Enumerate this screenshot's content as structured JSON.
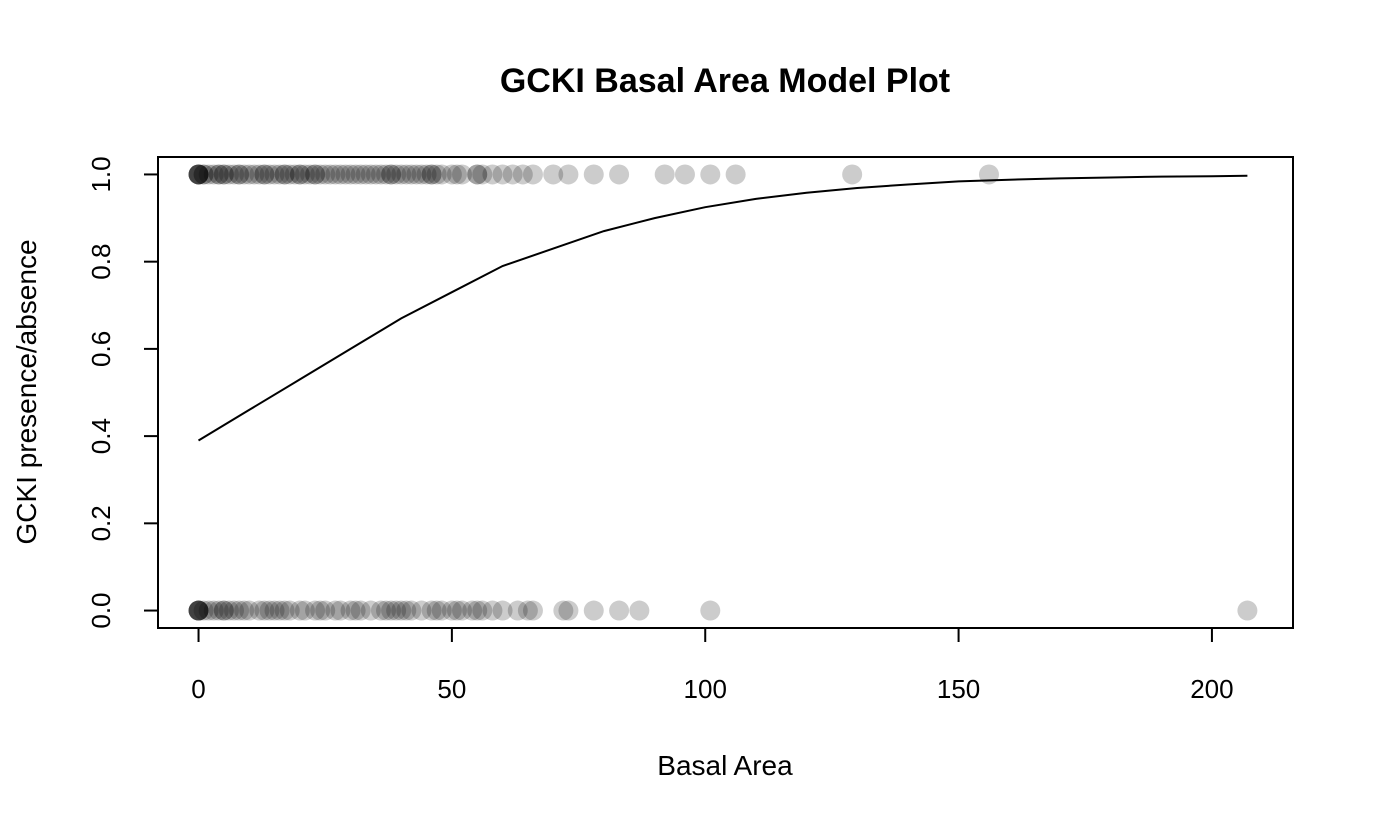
{
  "chart_data": {
    "type": "scatter",
    "title": "GCKI Basal Area Model Plot",
    "xlabel": "Basal Area",
    "ylabel": "GCKI presence/absence",
    "xlim": [
      -8,
      216
    ],
    "ylim": [
      -0.04,
      1.04
    ],
    "x_ticks": [
      0,
      50,
      100,
      150,
      200
    ],
    "y_ticks": [
      0.0,
      0.2,
      0.4,
      0.6,
      0.8,
      1.0
    ],
    "x_tick_labels": [
      "0",
      "50",
      "100",
      "150",
      "200"
    ],
    "y_tick_labels": [
      "0.0",
      "0.2",
      "0.4",
      "0.6",
      "0.8",
      "1.0"
    ],
    "grid": false,
    "legend": "none",
    "point_color": "#000000",
    "point_alpha": 0.2,
    "line_color": "#000000",
    "series": [
      {
        "kind": "points",
        "x": [
          0,
          0,
          0,
          0,
          0,
          0,
          1,
          1,
          2,
          3,
          4,
          4,
          5,
          5,
          6,
          7,
          8,
          8,
          9,
          10,
          11,
          12,
          13,
          13,
          14,
          15,
          16,
          17,
          17,
          18,
          19,
          20,
          20,
          21,
          22,
          23,
          23,
          24,
          25,
          26,
          27,
          28,
          29,
          30,
          31,
          32,
          33,
          34,
          35,
          36,
          37,
          38,
          38,
          39,
          40,
          41,
          42,
          43,
          44,
          45,
          46,
          46,
          47,
          48,
          50,
          51,
          52,
          55,
          55,
          56,
          58,
          60,
          62,
          64,
          66,
          70,
          73,
          78,
          83,
          92,
          96,
          101,
          106,
          129,
          156
        ],
        "y": [
          1,
          1,
          1,
          1,
          1,
          1,
          1,
          1,
          1,
          1,
          1,
          1,
          1,
          1,
          1,
          1,
          1,
          1,
          1,
          1,
          1,
          1,
          1,
          1,
          1,
          1,
          1,
          1,
          1,
          1,
          1,
          1,
          1,
          1,
          1,
          1,
          1,
          1,
          1,
          1,
          1,
          1,
          1,
          1,
          1,
          1,
          1,
          1,
          1,
          1,
          1,
          1,
          1,
          1,
          1,
          1,
          1,
          1,
          1,
          1,
          1,
          1,
          1,
          1,
          1,
          1,
          1,
          1,
          1,
          1,
          1,
          1,
          1,
          1,
          1,
          1,
          1,
          1,
          1,
          1,
          1,
          1,
          1,
          1,
          1
        ]
      },
      {
        "kind": "points",
        "x": [
          0,
          0,
          0,
          0,
          0,
          0,
          1,
          2,
          3,
          4,
          5,
          5,
          6,
          7,
          8,
          9,
          10,
          12,
          13,
          14,
          15,
          16,
          17,
          18,
          20,
          21,
          23,
          24,
          25,
          27,
          28,
          30,
          31,
          32,
          34,
          36,
          37,
          38,
          39,
          40,
          41,
          42,
          44,
          46,
          47,
          48,
          50,
          51,
          52,
          54,
          55,
          56,
          58,
          60,
          63,
          65,
          66,
          72,
          73,
          78,
          83,
          87,
          101,
          207
        ],
        "y": [
          0,
          0,
          0,
          0,
          0,
          0,
          0,
          0,
          0,
          0,
          0,
          0,
          0,
          0,
          0,
          0,
          0,
          0,
          0,
          0,
          0,
          0,
          0,
          0,
          0,
          0,
          0,
          0,
          0,
          0,
          0,
          0,
          0,
          0,
          0,
          0,
          0,
          0,
          0,
          0,
          0,
          0,
          0,
          0,
          0,
          0,
          0,
          0,
          0,
          0,
          0,
          0,
          0,
          0,
          0,
          0,
          0,
          0,
          0,
          0,
          0,
          0,
          0,
          0
        ]
      },
      {
        "kind": "line",
        "x": [
          0,
          10,
          20,
          30,
          40,
          50,
          60,
          70,
          80,
          90,
          100,
          110,
          120,
          130,
          140,
          150,
          160,
          170,
          180,
          190,
          200,
          207
        ],
        "y": [
          0.39,
          0.46,
          0.53,
          0.6,
          0.67,
          0.73,
          0.79,
          0.83,
          0.87,
          0.9,
          0.925,
          0.944,
          0.958,
          0.969,
          0.977,
          0.984,
          0.988,
          0.991,
          0.993,
          0.995,
          0.996,
          0.997
        ]
      }
    ]
  }
}
